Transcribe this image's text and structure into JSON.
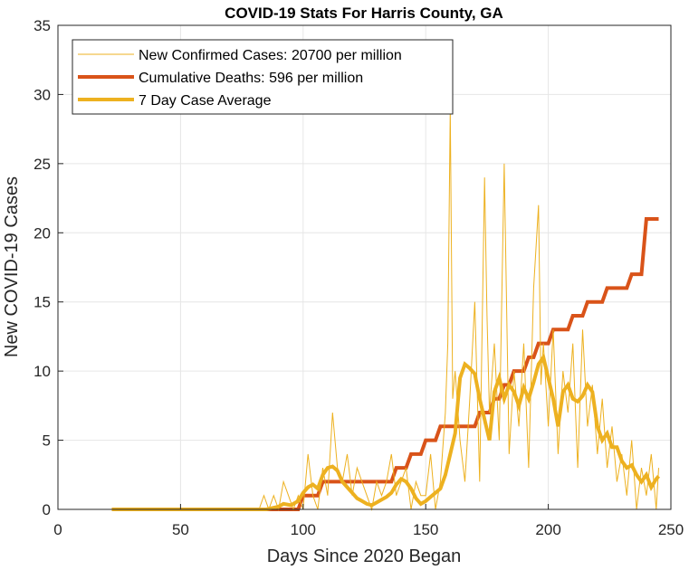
{
  "chart_data": {
    "type": "line",
    "title": "COVID-19 Stats For Harris County, GA",
    "xlabel": "Days Since 2020 Began",
    "ylabel": "New COVID-19 Cases",
    "xlim": [
      0,
      250
    ],
    "ylim": [
      0,
      35
    ],
    "xticks": [
      0,
      50,
      100,
      150,
      200,
      250
    ],
    "yticks": [
      0,
      5,
      10,
      15,
      20,
      25,
      30,
      35
    ],
    "grid": true,
    "legend_position": "top-left",
    "series": [
      {
        "name": "New Confirmed Cases: 20700 per million",
        "color": "#EDB120",
        "width": 1,
        "x": [
          82,
          84,
          86,
          88,
          90,
          92,
          94,
          96,
          98,
          100,
          102,
          104,
          106,
          108,
          110,
          112,
          114,
          116,
          118,
          120,
          122,
          124,
          126,
          128,
          130,
          132,
          134,
          136,
          138,
          140,
          142,
          144,
          146,
          148,
          150,
          152,
          154,
          156,
          158,
          159,
          160,
          161,
          162,
          164,
          166,
          168,
          170,
          172,
          174,
          175,
          176,
          178,
          180,
          182,
          184,
          186,
          188,
          190,
          192,
          194,
          196,
          197,
          198,
          200,
          202,
          204,
          206,
          208,
          210,
          212,
          214,
          216,
          218,
          220,
          222,
          224,
          226,
          228,
          230,
          232,
          234,
          236,
          238,
          240,
          242,
          244,
          245
        ],
        "y": [
          0,
          1,
          0,
          1,
          0,
          2,
          1,
          0,
          1,
          0,
          4,
          1,
          0,
          3,
          1,
          7,
          3,
          2,
          4,
          1,
          3,
          2,
          1,
          0,
          2,
          1,
          2,
          4,
          1,
          2,
          3,
          0,
          2,
          1,
          1,
          4,
          0,
          2,
          7,
          12,
          29,
          8,
          10,
          5,
          2,
          8,
          15,
          2,
          24,
          14,
          7,
          12,
          5,
          25,
          4,
          10,
          6,
          12,
          3,
          16,
          22,
          9,
          12,
          6,
          13,
          4,
          10,
          7,
          12,
          3,
          13,
          6,
          9,
          4,
          8,
          3,
          6,
          2,
          4,
          1,
          5,
          0,
          3,
          1,
          4,
          0,
          3
        ]
      },
      {
        "name": "Cumulative Deaths: 596 per million",
        "color": "#D95319",
        "width": 4,
        "x": [
          22,
          98,
          100,
          106,
          108,
          136,
          138,
          142,
          144,
          148,
          150,
          154,
          156,
          170,
          172,
          176,
          178,
          180,
          182,
          184,
          186,
          190,
          192,
          194,
          196,
          200,
          202,
          208,
          210,
          214,
          216,
          222,
          224,
          232,
          234,
          238,
          240,
          245
        ],
        "y": [
          0,
          0,
          1,
          1,
          2,
          2,
          3,
          3,
          4,
          4,
          5,
          5,
          6,
          6,
          7,
          7,
          8,
          8,
          9,
          9,
          10,
          10,
          11,
          11,
          12,
          12,
          13,
          13,
          14,
          14,
          15,
          15,
          16,
          16,
          17,
          17,
          21,
          21
        ]
      },
      {
        "name": "7 Day Case Average",
        "color": "#EDB120",
        "width": 4,
        "x": [
          22,
          60,
          80,
          85,
          90,
          92,
          95,
          98,
          100,
          102,
          104,
          106,
          108,
          110,
          112,
          114,
          116,
          118,
          120,
          122,
          124,
          126,
          128,
          130,
          132,
          134,
          136,
          138,
          140,
          142,
          144,
          146,
          148,
          150,
          152,
          154,
          156,
          158,
          160,
          162,
          164,
          166,
          168,
          170,
          172,
          174,
          176,
          178,
          180,
          182,
          184,
          186,
          188,
          190,
          192,
          194,
          196,
          198,
          200,
          202,
          204,
          206,
          208,
          210,
          212,
          214,
          216,
          218,
          220,
          222,
          224,
          226,
          228,
          230,
          232,
          234,
          236,
          238,
          240,
          242,
          244,
          245
        ],
        "y": [
          0,
          0,
          0,
          0,
          0.2,
          0.4,
          0.3,
          0.6,
          1.2,
          1.6,
          1.8,
          1.5,
          2.5,
          3.0,
          3.1,
          2.8,
          2.0,
          1.6,
          1.2,
          0.8,
          0.6,
          0.4,
          0.3,
          0.5,
          0.7,
          0.9,
          1.2,
          1.8,
          2.2,
          2.0,
          1.5,
          0.8,
          0.4,
          0.6,
          0.9,
          1.2,
          1.5,
          2.5,
          4.0,
          5.5,
          9.5,
          10.5,
          10.2,
          9.8,
          8.0,
          6.5,
          5.0,
          8.5,
          9.5,
          8.0,
          9.0,
          8.5,
          7.5,
          8.8,
          8.0,
          9.2,
          10.5,
          11.0,
          9.5,
          8.0,
          6.0,
          8.5,
          9.0,
          8.0,
          7.8,
          8.2,
          9.0,
          8.5,
          6.0,
          5.0,
          5.5,
          4.5,
          4.5,
          3.5,
          3.0,
          3.2,
          2.5,
          2.0,
          2.5,
          1.6,
          2.2,
          2.4
        ]
      }
    ]
  }
}
